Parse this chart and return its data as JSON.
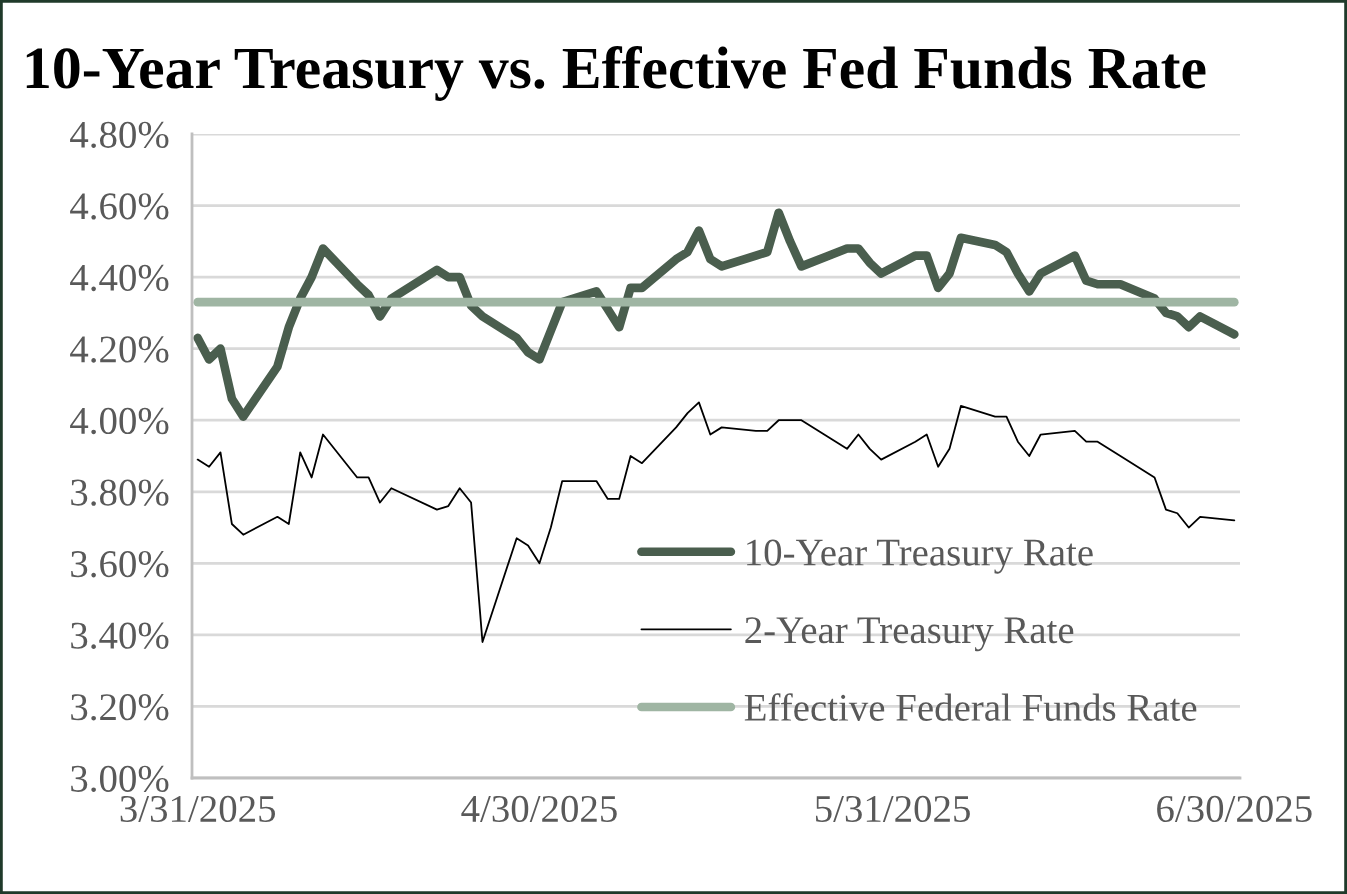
{
  "chart_data": {
    "type": "line",
    "title": "10-Year Treasury vs. Effective Fed Funds Rate",
    "x": [
      "2025-03-31",
      "2025-04-01",
      "2025-04-02",
      "2025-04-03",
      "2025-04-04",
      "2025-04-07",
      "2025-04-08",
      "2025-04-09",
      "2025-04-10",
      "2025-04-11",
      "2025-04-14",
      "2025-04-15",
      "2025-04-16",
      "2025-04-17",
      "2025-04-21",
      "2025-04-22",
      "2025-04-23",
      "2025-04-24",
      "2025-04-25",
      "2025-04-28",
      "2025-04-29",
      "2025-04-30",
      "2025-05-01",
      "2025-05-02",
      "2025-05-05",
      "2025-05-06",
      "2025-05-07",
      "2025-05-08",
      "2025-05-09",
      "2025-05-12",
      "2025-05-13",
      "2025-05-14",
      "2025-05-15",
      "2025-05-16",
      "2025-05-19",
      "2025-05-20",
      "2025-05-21",
      "2025-05-22",
      "2025-05-23",
      "2025-05-27",
      "2025-05-28",
      "2025-05-29",
      "2025-05-30",
      "2025-06-02",
      "2025-06-03",
      "2025-06-04",
      "2025-06-05",
      "2025-06-06",
      "2025-06-09",
      "2025-06-10",
      "2025-06-11",
      "2025-06-12",
      "2025-06-13",
      "2025-06-16",
      "2025-06-17",
      "2025-06-18",
      "2025-06-20",
      "2025-06-23",
      "2025-06-24",
      "2025-06-25",
      "2025-06-26",
      "2025-06-27",
      "2025-06-30"
    ],
    "series": [
      {
        "name": "10-Year Treasury Rate",
        "color": "#4a5e4e",
        "values": [
          4.23,
          4.17,
          4.2,
          4.06,
          4.01,
          4.15,
          4.26,
          4.34,
          4.4,
          4.48,
          4.38,
          4.35,
          4.29,
          4.34,
          4.42,
          4.4,
          4.4,
          4.32,
          4.29,
          4.23,
          4.19,
          4.17,
          4.25,
          4.33,
          4.36,
          4.31,
          4.26,
          4.37,
          4.37,
          4.45,
          4.47,
          4.53,
          4.45,
          4.43,
          4.46,
          4.47,
          4.58,
          4.5,
          4.43,
          4.48,
          4.48,
          4.44,
          4.41,
          4.46,
          4.46,
          4.37,
          4.41,
          4.51,
          4.49,
          4.47,
          4.41,
          4.36,
          4.41,
          4.46,
          4.39,
          4.38,
          4.38,
          4.34,
          4.3,
          4.29,
          4.26,
          4.29,
          4.24
        ]
      },
      {
        "name": "2-Year Treasury Rate",
        "color": "#000000",
        "values": [
          3.89,
          3.87,
          3.91,
          3.71,
          3.68,
          3.73,
          3.71,
          3.91,
          3.84,
          3.96,
          3.84,
          3.84,
          3.77,
          3.81,
          3.75,
          3.76,
          3.81,
          3.77,
          3.38,
          3.67,
          3.65,
          3.6,
          3.7,
          3.83,
          3.83,
          3.78,
          3.78,
          3.9,
          3.88,
          3.98,
          4.02,
          4.05,
          3.96,
          3.98,
          3.97,
          3.97,
          4.0,
          4.0,
          4.0,
          3.92,
          3.96,
          3.92,
          3.89,
          3.94,
          3.96,
          3.87,
          3.92,
          4.04,
          4.01,
          4.01,
          3.94,
          3.9,
          3.96,
          3.97,
          3.94,
          3.94,
          3.9,
          3.84,
          3.75,
          3.74,
          3.7,
          3.73,
          3.72
        ]
      },
      {
        "name": "Effective Federal Funds Rate",
        "color": "#9fb5a3",
        "x": [
          "2025-03-31",
          "2025-06-30"
        ],
        "values": [
          4.33,
          4.33
        ]
      }
    ],
    "xlim": [
      "2025-03-30T12:00",
      "2025-06-30T12:00"
    ],
    "xticks": [
      {
        "value": "2025-03-31",
        "label": "3/31/2025"
      },
      {
        "value": "2025-04-30",
        "label": "4/30/2025"
      },
      {
        "value": "2025-05-31",
        "label": "5/31/2025"
      },
      {
        "value": "2025-06-30",
        "label": "6/30/2025"
      }
    ],
    "ylim": [
      3.0,
      4.8
    ],
    "yticks": [
      {
        "value": 3.0,
        "label": "3.00%"
      },
      {
        "value": 3.2,
        "label": "3.20%"
      },
      {
        "value": 3.4,
        "label": "3.40%"
      },
      {
        "value": 3.6,
        "label": "3.60%"
      },
      {
        "value": 3.8,
        "label": "3.80%"
      },
      {
        "value": 4.0,
        "label": "4.00%"
      },
      {
        "value": 4.2,
        "label": "4.20%"
      },
      {
        "value": 4.4,
        "label": "4.40%"
      },
      {
        "value": 4.6,
        "label": "4.60%"
      },
      {
        "value": 4.8,
        "label": "4.80%"
      }
    ],
    "grid": "y",
    "legend": "bottom right"
  }
}
